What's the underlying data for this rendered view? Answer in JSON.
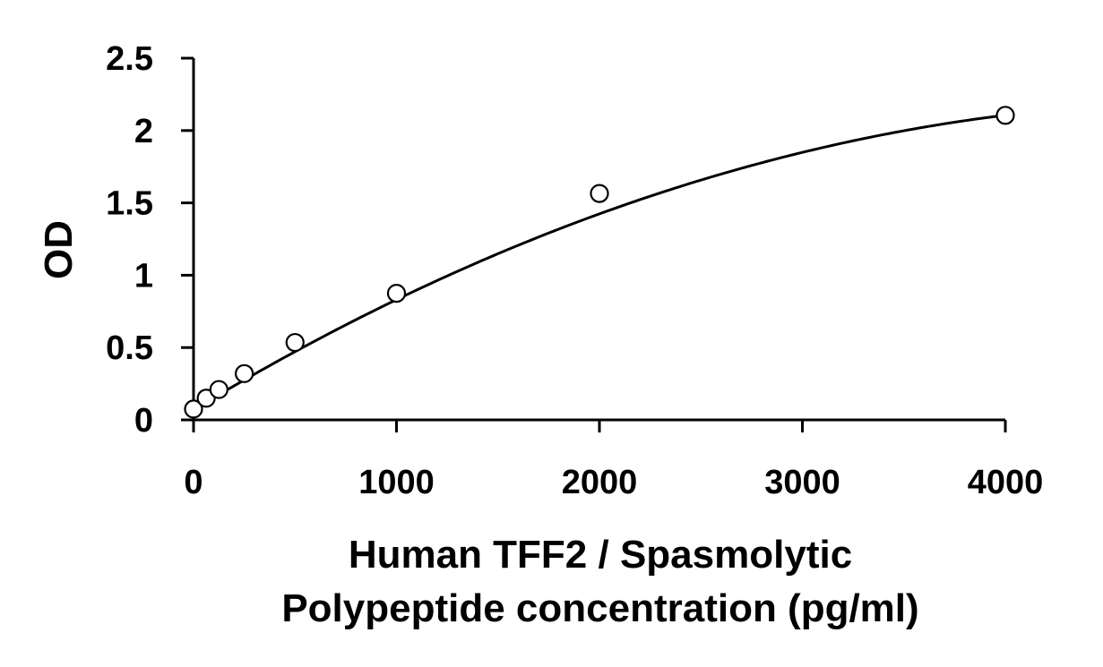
{
  "chart_data": {
    "type": "scatter",
    "xlabel_lines": [
      "Human TFF2 / Spasmolytic",
      "Polypeptide concentration (pg/ml)"
    ],
    "ylabel": "OD",
    "xlim": [
      0,
      4000
    ],
    "ylim": [
      0,
      2.5
    ],
    "x_ticks": [
      0,
      1000,
      2000,
      3000,
      4000
    ],
    "x_tick_labels": [
      "0",
      "1000",
      "2000",
      "3000",
      "4000"
    ],
    "y_ticks": [
      0,
      0.5,
      1,
      1.5,
      2,
      2.5
    ],
    "y_tick_labels": [
      "0",
      "0.5",
      "1",
      "1.5",
      "2",
      "2.5"
    ],
    "grid": false,
    "series": [
      {
        "x": [
          0,
          62.5,
          125,
          250,
          500,
          1000,
          2000,
          4000
        ],
        "y": [
          0.075,
          0.15,
          0.21,
          0.32,
          0.535,
          0.875,
          1.565,
          2.105
        ]
      }
    ],
    "fit_curve": {
      "form": "polynomial",
      "coefficients": [
        0.07,
        0.000845,
        -8.4e-08
      ]
    }
  }
}
